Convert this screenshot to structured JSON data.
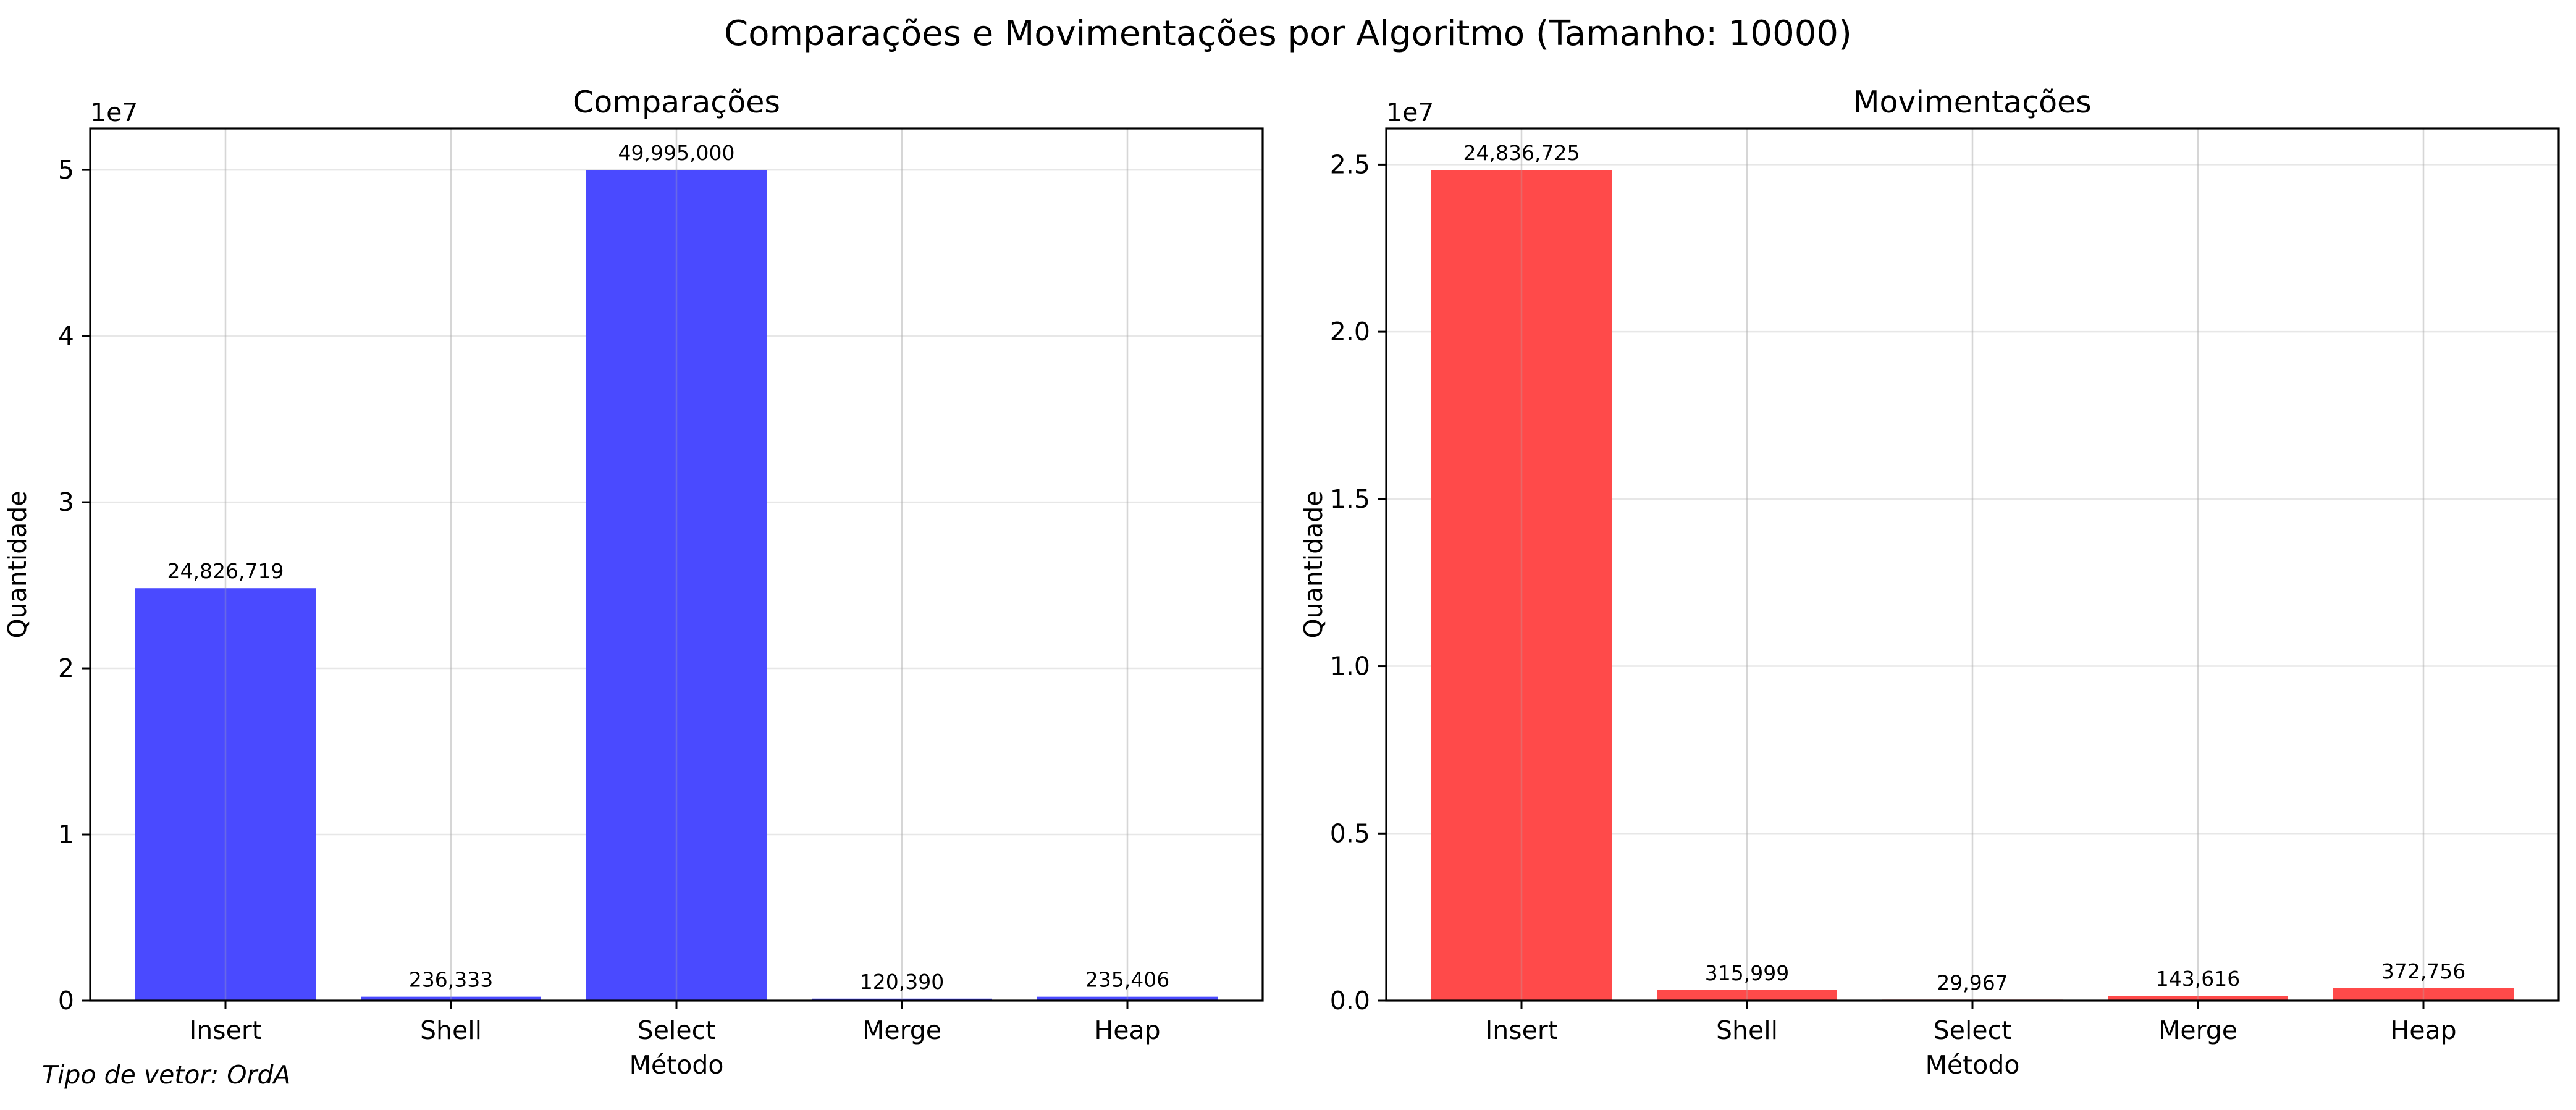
{
  "figure": {
    "suptitle": "Comparações e Movimentações por Algoritmo (Tamanho: 10000)",
    "footnote": "Tipo de vetor: OrdA"
  },
  "chart_data": [
    {
      "type": "bar",
      "title": "Comparações",
      "xlabel": "Método",
      "ylabel": "Quantidade",
      "categories": [
        "Insert",
        "Shell",
        "Select",
        "Merge",
        "Heap"
      ],
      "values": [
        24826719,
        236333,
        49995000,
        120390,
        235406
      ],
      "value_labels": [
        "24,826,719",
        "236,333",
        "49,995,000",
        "120,390",
        "235,406"
      ],
      "ylim": [
        0,
        52495000
      ],
      "yticks": [
        0,
        10000000,
        20000000,
        30000000,
        40000000,
        50000000
      ],
      "ytick_labels": [
        "0",
        "1",
        "2",
        "3",
        "4",
        "5"
      ],
      "offset_label": "1e7",
      "color": "#4a4aff",
      "grid": true
    },
    {
      "type": "bar",
      "title": "Movimentações",
      "xlabel": "Método",
      "ylabel": "Quantidade",
      "categories": [
        "Insert",
        "Shell",
        "Select",
        "Merge",
        "Heap"
      ],
      "values": [
        24836725,
        315999,
        29967,
        143616,
        372756
      ],
      "value_labels": [
        "24,836,725",
        "315,999",
        "29,967",
        "143,616",
        "372,756"
      ],
      "ylim": [
        0,
        26078561
      ],
      "yticks": [
        0,
        5000000,
        10000000,
        15000000,
        20000000,
        25000000
      ],
      "ytick_labels": [
        "0.0",
        "0.5",
        "1.0",
        "1.5",
        "2.0",
        "2.5"
      ],
      "offset_label": "1e7",
      "color": "#ff4a4a",
      "grid": true
    }
  ]
}
